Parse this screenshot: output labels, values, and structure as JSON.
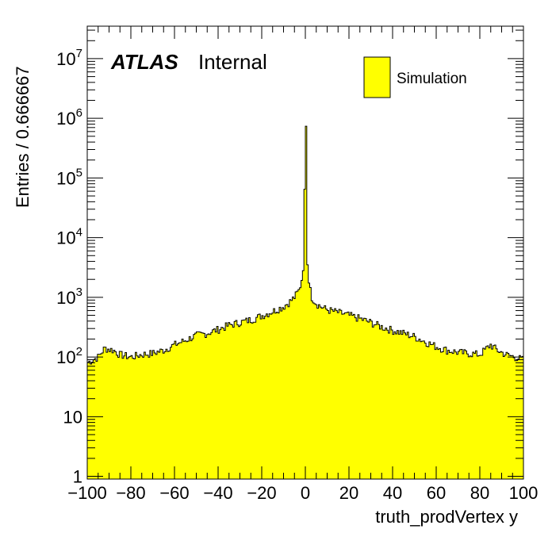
{
  "chart_data": {
    "type": "histogram",
    "ylabel": "Entries / 0.666667",
    "xlabel": "truth_prodVertex y",
    "label_bold": "ATLAS",
    "label_plain": "Internal",
    "legend": [
      {
        "name": "Simulation",
        "color": "#ffff00"
      }
    ],
    "log_y": true,
    "xlim": [
      -100,
      100
    ],
    "ylim": [
      0.9,
      35000000
    ],
    "bin_width": 0.666667,
    "x_ticks": [
      -100,
      -80,
      -60,
      -40,
      -20,
      0,
      20,
      40,
      60,
      80,
      100
    ],
    "x_tick_labels": [
      "−100",
      "−80",
      "−60",
      "−40",
      "−20",
      "0",
      "20",
      "40",
      "60",
      "80",
      "100"
    ],
    "y_ticks": [
      {
        "value": 1,
        "base": "1",
        "exp": ""
      },
      {
        "value": 10,
        "base": "10",
        "exp": ""
      },
      {
        "value": 100,
        "base": "10",
        "exp": "2"
      },
      {
        "value": 1000,
        "base": "10",
        "exp": "3"
      },
      {
        "value": 10000,
        "base": "10",
        "exp": "4"
      },
      {
        "value": 100000,
        "base": "10",
        "exp": "5"
      },
      {
        "value": 1000000,
        "base": "10",
        "exp": "6"
      },
      {
        "value": 10000000,
        "base": "10",
        "exp": "7"
      }
    ],
    "fill_color": "#ffff00",
    "line_color": "#000000",
    "shape_points": [
      [
        -100,
        80
      ],
      [
        -95,
        100
      ],
      [
        -92,
        140
      ],
      [
        -88,
        130
      ],
      [
        -85,
        110
      ],
      [
        -80,
        100
      ],
      [
        -75,
        110
      ],
      [
        -70,
        115
      ],
      [
        -65,
        130
      ],
      [
        -60,
        160
      ],
      [
        -55,
        190
      ],
      [
        -50,
        230
      ],
      [
        -45,
        250
      ],
      [
        -40,
        290
      ],
      [
        -35,
        340
      ],
      [
        -30,
        380
      ],
      [
        -25,
        420
      ],
      [
        -20,
        490
      ],
      [
        -15,
        580
      ],
      [
        -10,
        700
      ],
      [
        -7,
        850
      ],
      [
        -5,
        1000
      ],
      [
        -3,
        1300
      ],
      [
        -2,
        1700
      ],
      [
        -1,
        2800
      ],
      [
        -0.7,
        5500
      ],
      [
        -0.4,
        30000
      ],
      [
        -0.2,
        300000
      ],
      [
        0,
        1500000
      ],
      [
        0.2,
        2500000
      ],
      [
        0.4,
        400000
      ],
      [
        0.7,
        15000
      ],
      [
        1,
        3500
      ],
      [
        2,
        1500
      ],
      [
        3,
        1000
      ],
      [
        5,
        800
      ],
      [
        7,
        700
      ],
      [
        10,
        620
      ],
      [
        15,
        560
      ],
      [
        20,
        500
      ],
      [
        25,
        440
      ],
      [
        30,
        380
      ],
      [
        35,
        320
      ],
      [
        40,
        280
      ],
      [
        45,
        250
      ],
      [
        50,
        220
      ],
      [
        55,
        180
      ],
      [
        60,
        150
      ],
      [
        65,
        130
      ],
      [
        70,
        120
      ],
      [
        75,
        115
      ],
      [
        80,
        110
      ],
      [
        85,
        160
      ],
      [
        88,
        130
      ],
      [
        92,
        110
      ],
      [
        96,
        100
      ],
      [
        100,
        90
      ]
    ]
  }
}
